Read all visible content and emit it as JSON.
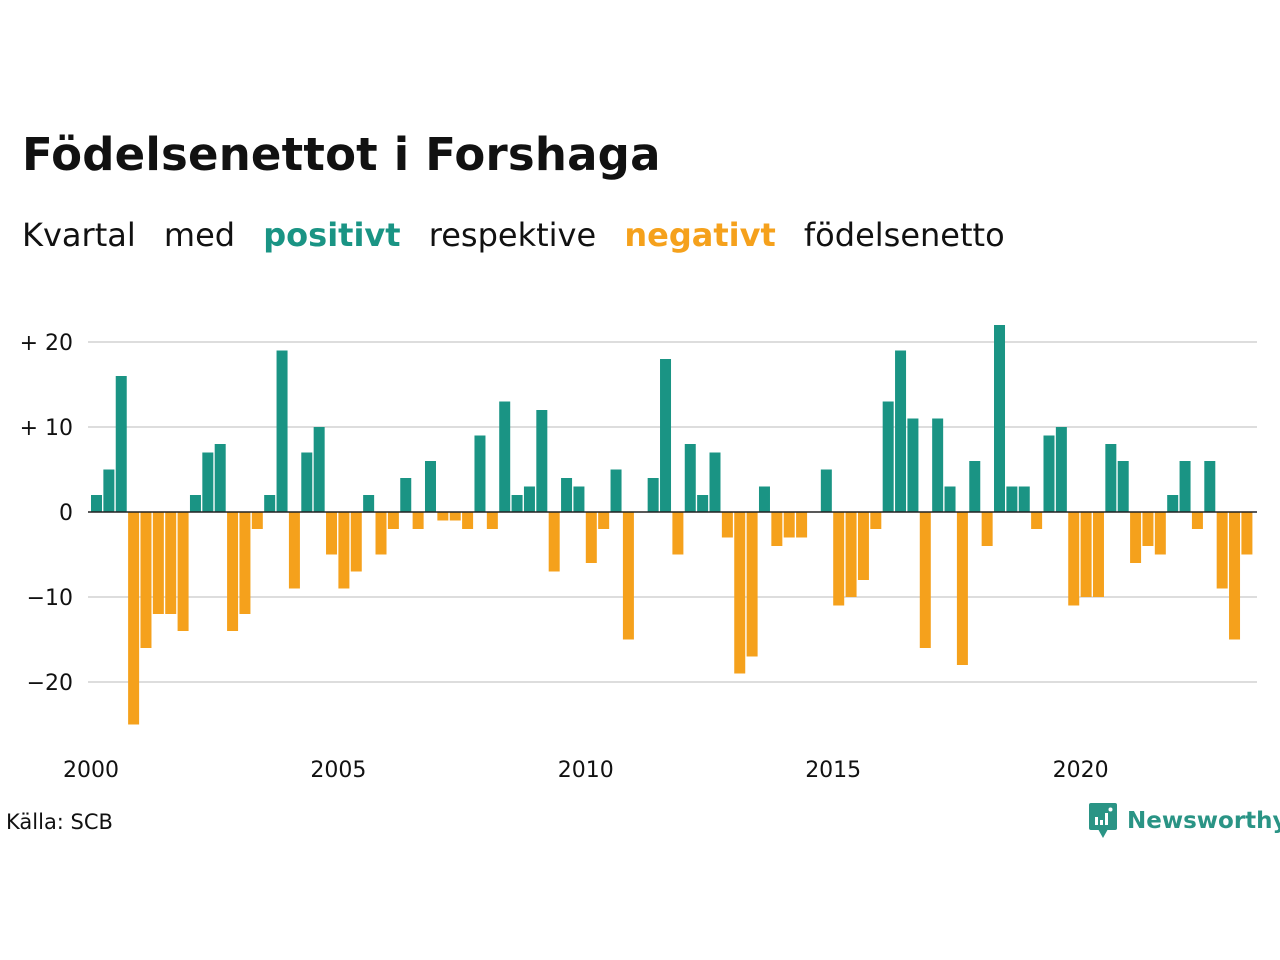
{
  "title": "Födelsenettot i Forshaga",
  "subtitle": {
    "w1": "Kvartal",
    "w2": "med",
    "positive": "positivt",
    "w3": "respektive",
    "negative": "negativt",
    "w4": "födelsenetto"
  },
  "source": "Källa: SCB",
  "brand": "Newsworthy",
  "colors": {
    "positive": "#1a9484",
    "negative": "#f5a11c",
    "grid": "#dddddd",
    "zero_line": "#222222",
    "brand": "#2a9485"
  },
  "chart_data": {
    "type": "bar",
    "xlabel": "",
    "ylabel": "",
    "ylim": [
      -27,
      22
    ],
    "xlim": [
      2000,
      2023.75
    ],
    "y_ticks": [
      {
        "value": 20,
        "label": "+ 20"
      },
      {
        "value": 10,
        "label": "+ 10"
      },
      {
        "value": 0,
        "label": "0"
      },
      {
        "value": -10,
        "label": "−10"
      },
      {
        "value": -20,
        "label": "−20"
      }
    ],
    "x_ticks": [
      {
        "value": 2000,
        "label": "2000"
      },
      {
        "value": 2005,
        "label": "2005"
      },
      {
        "value": 2010,
        "label": "2010"
      },
      {
        "value": 2015,
        "label": "2015"
      },
      {
        "value": 2020,
        "label": "2020"
      }
    ],
    "grid": true,
    "start_year": 2000,
    "quarters_per_year": 4,
    "values": [
      2,
      5,
      16,
      -25,
      -16,
      -12,
      -12,
      -14,
      2,
      7,
      8,
      -14,
      -12,
      -2,
      2,
      19,
      -9,
      7,
      10,
      -5,
      -9,
      -7,
      2,
      -5,
      -2,
      4,
      -2,
      6,
      -1,
      -1,
      -2,
      9,
      -2,
      13,
      2,
      3,
      12,
      -7,
      4,
      3,
      -6,
      -2,
      5,
      -15,
      0,
      4,
      18,
      -5,
      8,
      2,
      7,
      -3,
      -19,
      -17,
      3,
      -4,
      -3,
      -3,
      0,
      5,
      -11,
      -10,
      -8,
      -2,
      13,
      19,
      11,
      -16,
      11,
      3,
      -18,
      6,
      -4,
      22,
      3,
      3,
      -2,
      9,
      10,
      -11,
      -10,
      -10,
      8,
      6,
      -6,
      -4,
      -5,
      2,
      6,
      -2,
      6,
      -9,
      -15,
      -5
    ]
  }
}
